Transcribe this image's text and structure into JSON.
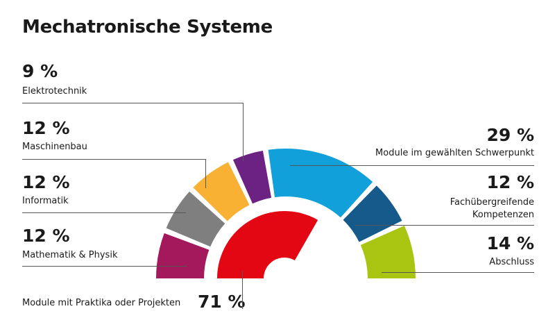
{
  "chart_data": {
    "type": "pie",
    "title": "Mechatronische Systeme",
    "slices": [
      {
        "label": "Mathematik & Physik",
        "value": 12,
        "display": "12 %",
        "color": "#a3195b"
      },
      {
        "label": "Informatik",
        "value": 12,
        "display": "12 %",
        "color": "#7f7f7f"
      },
      {
        "label": "Maschinenbau",
        "value": 12,
        "display": "12 %",
        "color": "#f8b133"
      },
      {
        "label": "Elektrotechnik",
        "value": 9,
        "display": "9 %",
        "color": "#6b2282"
      },
      {
        "label": "Module im gewählten Schwerpunkt",
        "value": 29,
        "display": "29 %",
        "color": "#12a0db"
      },
      {
        "label": "Fachübergreifende Kompetenzen",
        "value": 12,
        "display": "12 %",
        "color": "#155a8a"
      },
      {
        "label": "Abschluss",
        "value": 14,
        "display": "14 %",
        "color": "#a9c511"
      }
    ],
    "inner": {
      "label": "Module mit Praktika oder Projekten",
      "value": 71,
      "display": "71 %",
      "color": "#e30613"
    }
  }
}
